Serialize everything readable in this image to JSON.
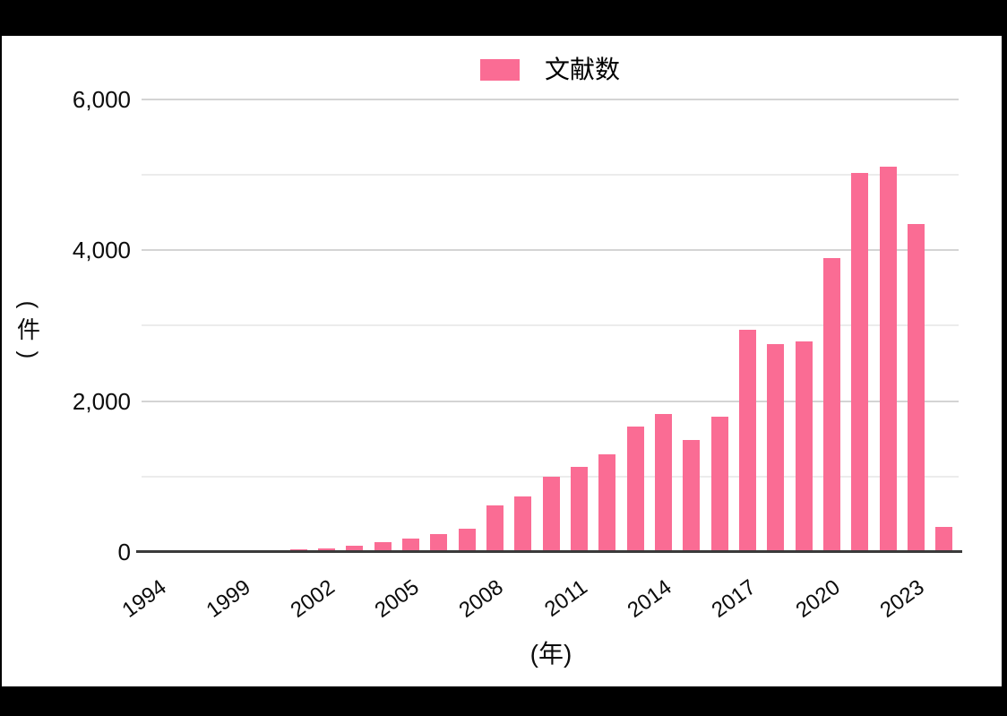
{
  "frame": {
    "background": "#000000",
    "card_background": "#ffffff"
  },
  "legend": {
    "label": "文献数",
    "swatch_color": "#fa6c94"
  },
  "y_axis": {
    "unit_label": "(件)",
    "unit_label_parts": [
      "(",
      "件",
      ")"
    ],
    "tick_labels": [
      "0",
      "2,000",
      "4,000",
      "6,000"
    ]
  },
  "x_axis": {
    "unit_label": "(年)",
    "shown_labels": [
      "1994",
      "1999",
      "2002",
      "2005",
      "2008",
      "2011",
      "2014",
      "2017",
      "2020",
      "2023"
    ]
  },
  "chart_data": {
    "type": "bar",
    "title": "",
    "legend_position": "top",
    "xlabel": "(年)",
    "ylabel": "(件)",
    "ylim": [
      0,
      6000
    ],
    "y_ticks": [
      0,
      2000,
      4000,
      6000
    ],
    "gridlines": [
      1000,
      2000,
      3000,
      4000,
      5000,
      6000
    ],
    "major_gridlines": [
      2000,
      4000,
      6000
    ],
    "grid": true,
    "label_every": 3,
    "categories": [
      "1994",
      "1996",
      "1998",
      "1999",
      "2000",
      "2001",
      "2002",
      "2003",
      "2004",
      "2005",
      "2006",
      "2007",
      "2008",
      "2009",
      "2010",
      "2011",
      "2012",
      "2013",
      "2014",
      "2015",
      "2016",
      "2017",
      "2018",
      "2019",
      "2020",
      "2021",
      "2022",
      "2023",
      "2024"
    ],
    "series": [
      {
        "name": "文献数",
        "color": "#fa6c94",
        "values": [
          1,
          1,
          2,
          3,
          6,
          30,
          45,
          85,
          135,
          180,
          235,
          305,
          620,
          740,
          1000,
          1130,
          1290,
          1660,
          1830,
          1480,
          1790,
          2950,
          2750,
          2790,
          3890,
          5020,
          5110,
          4350,
          330
        ]
      }
    ]
  }
}
